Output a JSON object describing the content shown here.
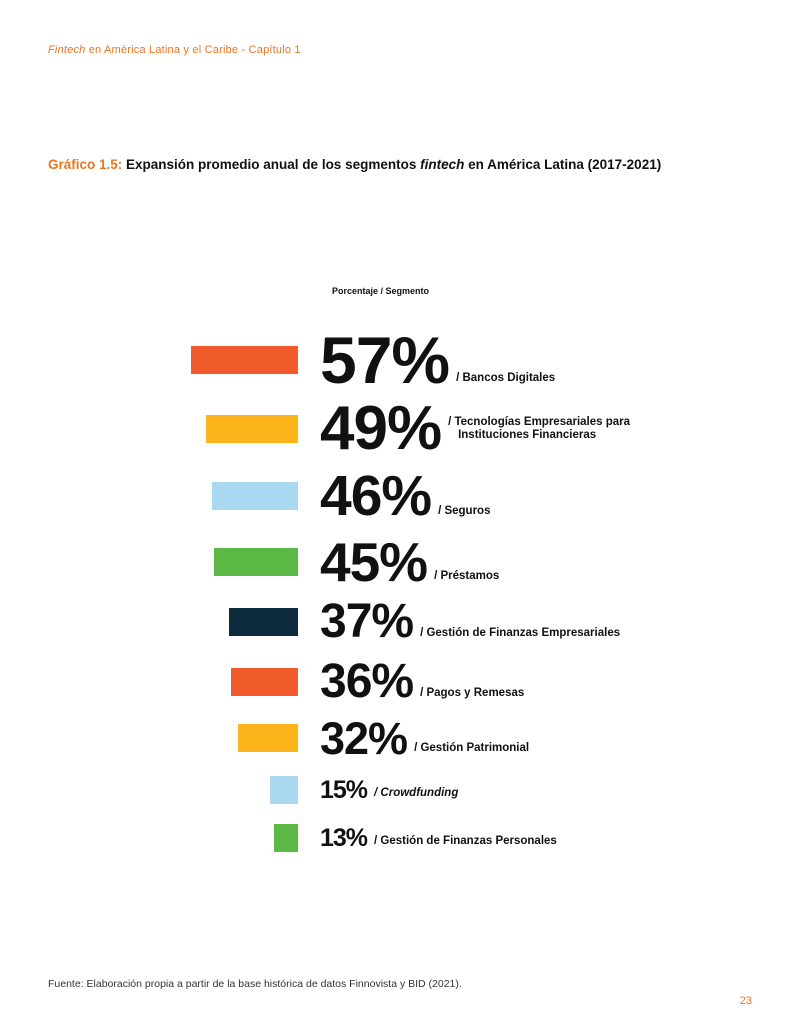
{
  "header": {
    "running_italic": "Fintech",
    "running_rest": " en América Latina y el Caribe - Capítulo 1"
  },
  "figure": {
    "label": "Gráfico 1.5:",
    "title_part1": " Expansión promedio anual de los segmentos ",
    "title_italic": "fintech",
    "title_part2": " en América Latina (2017-2021)"
  },
  "chart_data": {
    "type": "bar",
    "column_header": "Porcentaje / Segmento",
    "categories": [
      "Bancos Digitales",
      "Tecnologías Empresariales para Instituciones Financieras",
      "Seguros",
      "Préstamos",
      "Gestión de Finanzas Empresariales",
      "Pagos y Remesas",
      "Gestión Patrimonial",
      "Crowdfunding",
      "Gestión de Finanzas Personales"
    ],
    "values": [
      57,
      49,
      46,
      45,
      37,
      36,
      32,
      15,
      13
    ],
    "value_labels": [
      "57%",
      "49%",
      "46%",
      "45%",
      "37%",
      "36%",
      "32%",
      "15%",
      "13%"
    ],
    "segment_labels": [
      [
        "/ Bancos Digitales"
      ],
      [
        "/ Tecnologías Empresariales para",
        "Instituciones Financieras"
      ],
      [
        "/ Seguros"
      ],
      [
        "/ Préstamos"
      ],
      [
        "/ Gestión de Finanzas Empresariales"
      ],
      [
        "/ Pagos y Remesas"
      ],
      [
        "/ Gestión Patrimonial"
      ],
      [
        "/ Crowdfunding"
      ],
      [
        "/ Gestión de Finanzas Personales"
      ]
    ],
    "italic_segments": [
      false,
      false,
      false,
      false,
      false,
      false,
      false,
      true,
      false
    ],
    "colors": [
      "#f15a2b",
      "#fbb41a",
      "#a9d8f0",
      "#5cb946",
      "#0e2a3d",
      "#f15a2b",
      "#fbb41a",
      "#a9d8f0",
      "#5cb946"
    ],
    "xlabel": "",
    "ylabel": ""
  },
  "footer": {
    "source": "Fuente: Elaboración propia a partir de la base histórica de datos Finnovista y BID (2021).",
    "page_number": "23"
  }
}
